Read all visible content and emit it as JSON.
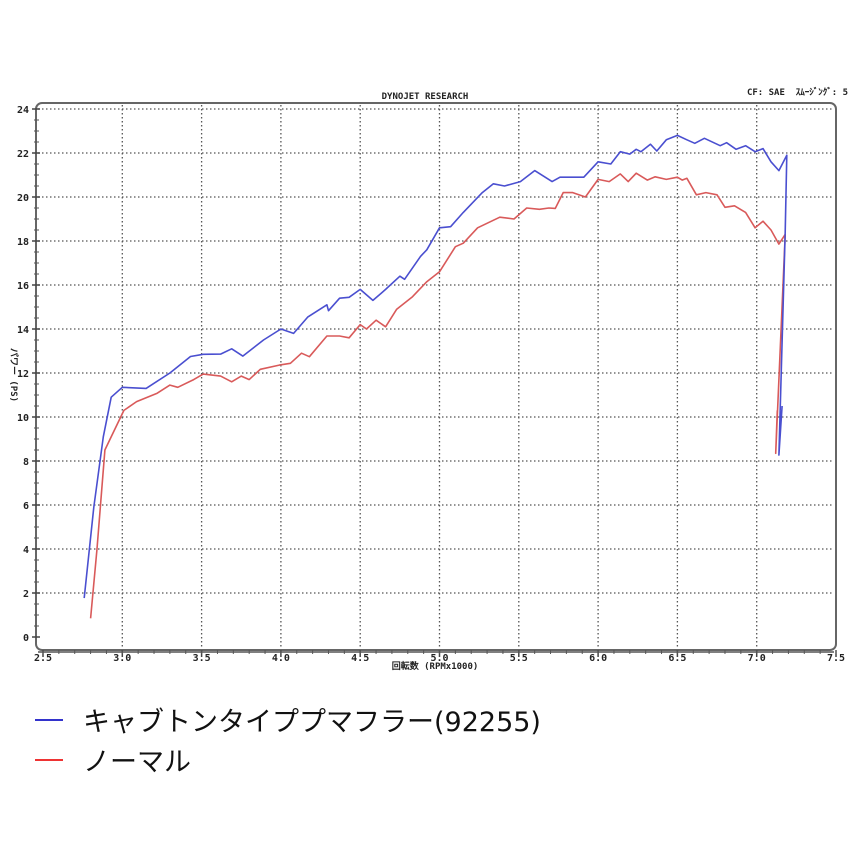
{
  "chart_data": {
    "type": "line",
    "title": "DYNOJET RESEARCH",
    "header_right": "CF: SAE  ｽﾑｰｼﾞﾝｸﾞ: 5",
    "xlabel": "回転数 (RPMx1000)",
    "ylabel": "パワー (PS)",
    "xlim": [
      2.5,
      7.5
    ],
    "ylim": [
      0,
      24
    ],
    "x_ticks": [
      "2.5",
      "3.0",
      "3.5",
      "4.0",
      "4.5",
      "5.0",
      "5.5",
      "6.0",
      "6.5",
      "7.0",
      "7.5"
    ],
    "y_ticks": [
      "0",
      "2",
      "4",
      "6",
      "8",
      "10",
      "12",
      "14",
      "16",
      "18",
      "20",
      "22",
      "24"
    ],
    "grid": true,
    "legend_position": "bottom-left",
    "series": [
      {
        "name": "キャブトンタイププマフラー(92255)",
        "color": "#4a4fd0",
        "points": [
          [
            2.76,
            1.77
          ],
          [
            2.82,
            5.9
          ],
          [
            2.88,
            9.1
          ],
          [
            2.93,
            10.9
          ],
          [
            3.0,
            11.35
          ],
          [
            3.15,
            11.3
          ],
          [
            3.3,
            12.0
          ],
          [
            3.43,
            12.75
          ],
          [
            3.51,
            12.85
          ],
          [
            3.62,
            12.86
          ],
          [
            3.69,
            13.1
          ],
          [
            3.76,
            12.77
          ],
          [
            3.89,
            13.5
          ],
          [
            4.0,
            14.0
          ],
          [
            4.08,
            13.8
          ],
          [
            4.17,
            14.55
          ],
          [
            4.29,
            15.1
          ],
          [
            4.3,
            14.83
          ],
          [
            4.37,
            15.4
          ],
          [
            4.43,
            15.44
          ],
          [
            4.5,
            15.8
          ],
          [
            4.58,
            15.3
          ],
          [
            4.66,
            15.8
          ],
          [
            4.75,
            16.4
          ],
          [
            4.78,
            16.26
          ],
          [
            4.88,
            17.3
          ],
          [
            4.92,
            17.6
          ],
          [
            5.0,
            18.6
          ],
          [
            5.07,
            18.65
          ],
          [
            5.15,
            19.3
          ],
          [
            5.27,
            20.2
          ],
          [
            5.34,
            20.6
          ],
          [
            5.41,
            20.5
          ],
          [
            5.51,
            20.7
          ],
          [
            5.6,
            21.2
          ],
          [
            5.71,
            20.7
          ],
          [
            5.76,
            20.9
          ],
          [
            5.91,
            20.9
          ],
          [
            6.0,
            21.6
          ],
          [
            6.08,
            21.5
          ],
          [
            6.14,
            22.06
          ],
          [
            6.2,
            21.95
          ],
          [
            6.24,
            22.17
          ],
          [
            6.27,
            22.06
          ],
          [
            6.33,
            22.4
          ],
          [
            6.37,
            22.09
          ],
          [
            6.43,
            22.6
          ],
          [
            6.5,
            22.8
          ],
          [
            6.56,
            22.6
          ],
          [
            6.61,
            22.44
          ],
          [
            6.67,
            22.67
          ],
          [
            6.77,
            22.33
          ],
          [
            6.81,
            22.47
          ],
          [
            6.87,
            22.17
          ],
          [
            6.93,
            22.33
          ],
          [
            6.99,
            22.06
          ],
          [
            7.04,
            22.2
          ],
          [
            7.09,
            21.6
          ],
          [
            7.14,
            21.2
          ],
          [
            7.19,
            21.9
          ],
          [
            7.18,
            18.4
          ],
          [
            7.14,
            8.27
          ],
          [
            7.16,
            10.5
          ]
        ]
      },
      {
        "name": "ノーマル",
        "color": "#d95a5a",
        "points": [
          [
            2.8,
            0.85
          ],
          [
            2.84,
            3.95
          ],
          [
            2.89,
            8.5
          ],
          [
            2.92,
            8.95
          ],
          [
            3.01,
            10.3
          ],
          [
            3.09,
            10.7
          ],
          [
            3.22,
            11.08
          ],
          [
            3.3,
            11.45
          ],
          [
            3.35,
            11.35
          ],
          [
            3.45,
            11.7
          ],
          [
            3.51,
            11.95
          ],
          [
            3.62,
            11.86
          ],
          [
            3.69,
            11.6
          ],
          [
            3.75,
            11.86
          ],
          [
            3.8,
            11.7
          ],
          [
            3.87,
            12.17
          ],
          [
            3.99,
            12.36
          ],
          [
            4.06,
            12.44
          ],
          [
            4.13,
            12.9
          ],
          [
            4.18,
            12.74
          ],
          [
            4.29,
            13.68
          ],
          [
            4.37,
            13.68
          ],
          [
            4.43,
            13.6
          ],
          [
            4.5,
            14.2
          ],
          [
            4.54,
            14.0
          ],
          [
            4.6,
            14.4
          ],
          [
            4.66,
            14.1
          ],
          [
            4.73,
            14.9
          ],
          [
            4.83,
            15.47
          ],
          [
            4.92,
            16.15
          ],
          [
            5.0,
            16.6
          ],
          [
            5.1,
            17.74
          ],
          [
            5.15,
            17.9
          ],
          [
            5.24,
            18.6
          ],
          [
            5.38,
            19.08
          ],
          [
            5.47,
            19.0
          ],
          [
            5.55,
            19.5
          ],
          [
            5.63,
            19.44
          ],
          [
            5.69,
            19.5
          ],
          [
            5.73,
            19.48
          ],
          [
            5.78,
            20.2
          ],
          [
            5.84,
            20.2
          ],
          [
            5.92,
            20.0
          ],
          [
            6.0,
            20.8
          ],
          [
            6.07,
            20.7
          ],
          [
            6.14,
            21.05
          ],
          [
            6.19,
            20.7
          ],
          [
            6.24,
            21.08
          ],
          [
            6.31,
            20.77
          ],
          [
            6.36,
            20.92
          ],
          [
            6.43,
            20.8
          ],
          [
            6.5,
            20.9
          ],
          [
            6.53,
            20.77
          ],
          [
            6.56,
            20.85
          ],
          [
            6.62,
            20.1
          ],
          [
            6.68,
            20.2
          ],
          [
            6.75,
            20.1
          ],
          [
            6.8,
            19.53
          ],
          [
            6.86,
            19.6
          ],
          [
            6.93,
            19.3
          ],
          [
            6.99,
            18.6
          ],
          [
            7.04,
            18.9
          ],
          [
            7.09,
            18.5
          ],
          [
            7.14,
            17.86
          ],
          [
            7.18,
            18.3
          ],
          [
            7.12,
            8.35
          ],
          [
            7.13,
            10.3
          ]
        ]
      }
    ]
  }
}
